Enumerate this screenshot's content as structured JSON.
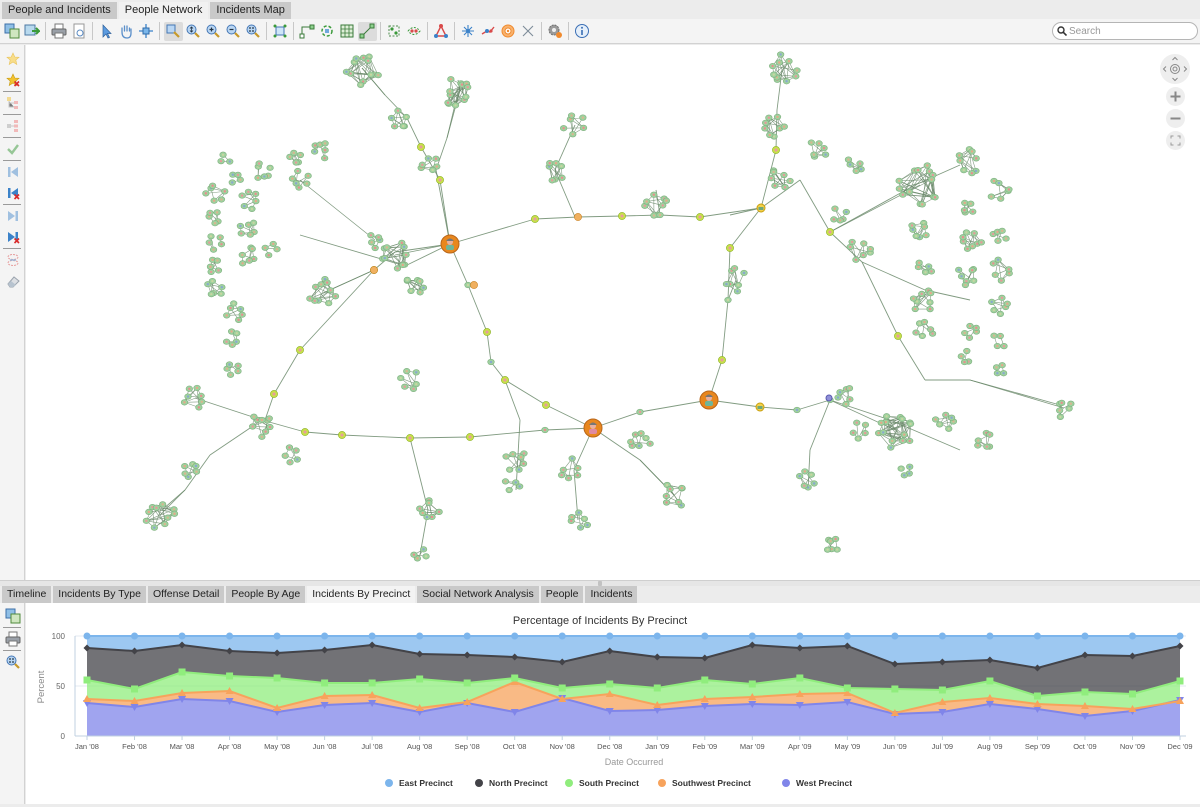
{
  "top_tabs": [
    {
      "label": "People and Incidents",
      "active": false
    },
    {
      "label": "People Network",
      "active": true
    },
    {
      "label": "Incidents Map",
      "active": false
    }
  ],
  "toolbar": {
    "buttons": [
      "save-layout-icon",
      "export-icon",
      "print-icon",
      "print-preview-icon",
      "select-pointer-icon",
      "pan-hand-icon",
      "move-node-icon",
      "zoom-rect-icon",
      "zoom-fit-icon",
      "zoom-in-icon",
      "zoom-out-icon",
      "zoom-actual-icon",
      "layout-organic-icon",
      "layout-hierarchic-icon",
      "layout-circular-icon",
      "layout-grid-icon",
      "layout-tree-icon",
      "group-nodes-icon",
      "ungroup-nodes-icon",
      "shortest-path-icon",
      "centrality-icon",
      "link-analysis-icon",
      "target-icon",
      "remove-link-icon",
      "settings-icon",
      "info-icon"
    ],
    "search_placeholder": "Search"
  },
  "left_tools": [
    "star-icon",
    "star-remove-icon",
    "hierarchy-icon",
    "hierarchy-remove-icon",
    "check-icon",
    "bookmark-back-icon",
    "bookmark-back-remove-icon",
    "bookmark-forward-icon",
    "bookmark-forward-remove-icon",
    "link-icon",
    "eraser-icon"
  ],
  "map_controls": [
    "pan-control",
    "zoom-in-control",
    "zoom-out-control",
    "fullscreen-control"
  ],
  "bottom_tabs": [
    {
      "label": "Timeline",
      "active": false
    },
    {
      "label": "Incidents By Type",
      "active": false
    },
    {
      "label": "Offense Detail",
      "active": false
    },
    {
      "label": "People By Age",
      "active": false
    },
    {
      "label": "Incidents By Precinct",
      "active": true
    },
    {
      "label": "Social Network Analysis",
      "active": false
    },
    {
      "label": "People",
      "active": false
    },
    {
      "label": "Incidents",
      "active": false
    }
  ],
  "bottom_tools": [
    "save-chart-icon",
    "print-chart-icon",
    "zoom-chart-icon"
  ],
  "colors": {
    "east": "#7cb5ec",
    "north": "#434348",
    "south": "#90ed7d",
    "southwest": "#f7a35c",
    "west": "#8085e9",
    "node_fill": "#9fd19f",
    "edge": "#6b8a6b",
    "hub": "#e8871e"
  },
  "chart_data": {
    "type": "area",
    "stacking": "percent",
    "title": "Percentage of Incidents By Precinct",
    "xlabel": "Date Occurred",
    "ylabel": "Percent",
    "ylim": [
      0,
      100
    ],
    "yticks": [
      0,
      50,
      100
    ],
    "grid": true,
    "legend_position": "bottom",
    "categories": [
      "Jan '08",
      "Feb '08",
      "Mar '08",
      "Apr '08",
      "May '08",
      "Jun '08",
      "Jul '08",
      "Aug '08",
      "Sep '08",
      "Oct '08",
      "Nov '08",
      "Dec '08",
      "Jan '09",
      "Feb '09",
      "Mar '09",
      "Apr '09",
      "May '09",
      "Jun '09",
      "Jul '09",
      "Aug '09",
      "Sep '09",
      "Oct '09",
      "Nov '09",
      "Dec '09"
    ],
    "series": [
      {
        "name": "East Precinct",
        "marker": "circle",
        "values": [
          12,
          15,
          9,
          15,
          17,
          14,
          9,
          18,
          19,
          21,
          26,
          15,
          21,
          22,
          9,
          12,
          10,
          28,
          26,
          24,
          32,
          19,
          20,
          10
        ]
      },
      {
        "name": "North Precinct",
        "marker": "diamond",
        "values": [
          32,
          38,
          27,
          25,
          25,
          33,
          38,
          25,
          28,
          21,
          26,
          33,
          31,
          22,
          39,
          30,
          42,
          25,
          28,
          21,
          28,
          37,
          38,
          35
        ]
      },
      {
        "name": "South Precinct",
        "marker": "square",
        "values": [
          19,
          12,
          21,
          15,
          30,
          13,
          12,
          29,
          19,
          4,
          11,
          10,
          17,
          19,
          13,
          16,
          5,
          24,
          12,
          17,
          8,
          14,
          15,
          20
        ]
      },
      {
        "name": "Southwest Precinct",
        "marker": "triangle",
        "values": [
          4,
          6,
          6,
          10,
          4,
          9,
          8,
          4,
          1,
          30,
          -1,
          17,
          5,
          7,
          7,
          11,
          9,
          1,
          10,
          6,
          5,
          10,
          2,
          -1
        ]
      },
      {
        "name": "West Precinct",
        "marker": "triangle-down",
        "values": [
          33,
          29,
          37,
          35,
          24,
          31,
          33,
          24,
          33,
          24,
          38,
          25,
          26,
          30,
          32,
          31,
          34,
          22,
          24,
          32,
          27,
          20,
          25,
          36
        ]
      }
    ]
  }
}
